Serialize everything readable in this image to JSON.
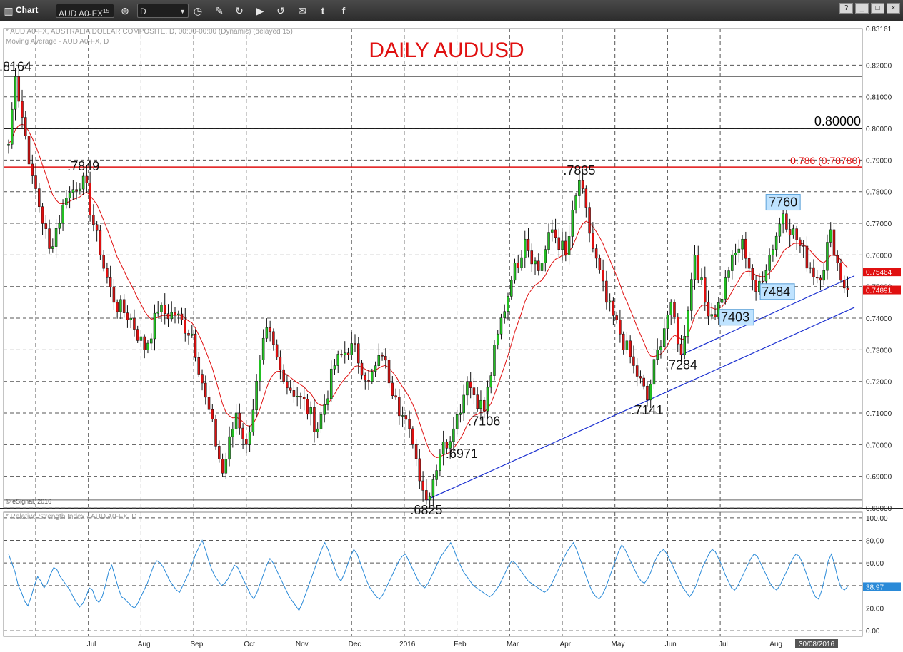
{
  "toolbar": {
    "chart_label": "Chart",
    "symbol": "AUD A0-FX",
    "symbol_sup": "15",
    "interval": "D",
    "window_buttons": [
      "?",
      "_",
      "□",
      "×"
    ]
  },
  "chart_data": [
    {
      "type": "candlestick",
      "title": "DAILY AUDUSD",
      "subtitle_lines": [
        "* AUD A0-FX, AUSTRALIA DOLLAR COMPOSITE, D, 00:00-00:00 (Dynamic) (delayed 15)",
        "Moving Average - AUD A0-FX, D"
      ],
      "watermark": "© eSignal, 2016",
      "y_ticks": [
        "0.82000",
        "0.81000",
        "0.80000",
        "0.79000",
        "0.78000",
        "0.77000",
        "0.76000",
        "0.75000",
        "0.74000",
        "0.73000",
        "0.72000",
        "0.71000",
        "0.70000",
        "0.69000",
        "0.68000"
      ],
      "ylim": [
        0.68,
        0.8316
      ],
      "price_tags": {
        "top": "0.83161",
        "ma": "0.75464",
        "last": "0.74891"
      },
      "x_labels": [
        "Jul",
        "Aug",
        "Sep",
        "Oct",
        "Nov",
        "Dec",
        "2016",
        "Feb",
        "Mar",
        "Apr",
        "May",
        "Jun",
        "Jul",
        "Aug"
      ],
      "date_tag": "30/08/2016",
      "waypoints": [
        {
          "i": 0,
          "v": 0.795
        },
        {
          "i": 2,
          "v": 0.8164
        },
        {
          "i": 7,
          "v": 0.785
        },
        {
          "i": 12,
          "v": 0.762
        },
        {
          "i": 17,
          "v": 0.778
        },
        {
          "i": 22,
          "v": 0.7849
        },
        {
          "i": 27,
          "v": 0.76
        },
        {
          "i": 31,
          "v": 0.745
        },
        {
          "i": 36,
          "v": 0.74
        },
        {
          "i": 40,
          "v": 0.73
        },
        {
          "i": 44,
          "v": 0.742
        },
        {
          "i": 49,
          "v": 0.741
        },
        {
          "i": 54,
          "v": 0.735
        },
        {
          "i": 58,
          "v": 0.715
        },
        {
          "i": 63,
          "v": 0.691
        },
        {
          "i": 67,
          "v": 0.71
        },
        {
          "i": 70,
          "v": 0.7
        },
        {
          "i": 76,
          "v": 0.737
        },
        {
          "i": 81,
          "v": 0.72
        },
        {
          "i": 86,
          "v": 0.715
        },
        {
          "i": 91,
          "v": 0.705
        },
        {
          "i": 96,
          "v": 0.725
        },
        {
          "i": 101,
          "v": 0.732
        },
        {
          "i": 106,
          "v": 0.72
        },
        {
          "i": 110,
          "v": 0.728
        },
        {
          "i": 114,
          "v": 0.715
        },
        {
          "i": 119,
          "v": 0.7
        },
        {
          "i": 123,
          "v": 0.6825
        },
        {
          "i": 127,
          "v": 0.6971
        },
        {
          "i": 131,
          "v": 0.705
        },
        {
          "i": 135,
          "v": 0.72
        },
        {
          "i": 140,
          "v": 0.7106
        },
        {
          "i": 144,
          "v": 0.735
        },
        {
          "i": 148,
          "v": 0.752
        },
        {
          "i": 152,
          "v": 0.765
        },
        {
          "i": 156,
          "v": 0.755
        },
        {
          "i": 160,
          "v": 0.768
        },
        {
          "i": 164,
          "v": 0.76
        },
        {
          "i": 168,
          "v": 0.7835
        },
        {
          "i": 172,
          "v": 0.762
        },
        {
          "i": 176,
          "v": 0.745
        },
        {
          "i": 180,
          "v": 0.735
        },
        {
          "i": 184,
          "v": 0.725
        },
        {
          "i": 188,
          "v": 0.7141
        },
        {
          "i": 191,
          "v": 0.73
        },
        {
          "i": 195,
          "v": 0.745
        },
        {
          "i": 198,
          "v": 0.7284
        },
        {
          "i": 202,
          "v": 0.76
        },
        {
          "i": 205,
          "v": 0.745
        },
        {
          "i": 208,
          "v": 0.7403
        },
        {
          "i": 212,
          "v": 0.755
        },
        {
          "i": 216,
          "v": 0.765
        },
        {
          "i": 220,
          "v": 0.7484
        },
        {
          "i": 224,
          "v": 0.76
        },
        {
          "i": 228,
          "v": 0.773
        },
        {
          "i": 232,
          "v": 0.7648
        },
        {
          "i": 236,
          "v": 0.756
        },
        {
          "i": 239,
          "v": 0.752
        },
        {
          "i": 242,
          "v": 0.768
        },
        {
          "i": 245,
          "v": 0.752
        },
        {
          "i": 247,
          "v": 0.7489
        }
      ],
      "horizontal_lines": [
        {
          "label": "0.80000",
          "value": 0.8,
          "color": "#000000"
        },
        {
          "label": "0.786 (0.78780)",
          "value": 0.7878,
          "color": "#e01010"
        },
        {
          "label": "",
          "value": 0.8164,
          "color": "#666666"
        },
        {
          "label": "",
          "value": 0.6825,
          "color": "#666666"
        }
      ],
      "trendlines": [
        {
          "from": {
            "i": 123,
            "v": 0.6825
          },
          "to": {
            "i": 249,
            "v": 0.7434
          },
          "color": "#1a2fd0"
        },
        {
          "from": {
            "i": 198,
            "v": 0.7284
          },
          "to": {
            "i": 249,
            "v": 0.7534
          },
          "color": "#1a2fd0"
        }
      ],
      "annotations": [
        {
          "text": ".8164",
          "i": 2,
          "v": 0.8164,
          "pos": "above",
          "boxed": false
        },
        {
          "text": ".7849",
          "i": 22,
          "v": 0.7849,
          "pos": "above",
          "boxed": false
        },
        {
          "text": ".6825",
          "i": 123,
          "v": 0.6825,
          "pos": "below",
          "boxed": false
        },
        {
          "text": ".6971",
          "i": 127,
          "v": 0.6971,
          "pos": "right",
          "boxed": false
        },
        {
          "text": ".7106",
          "i": 140,
          "v": 0.7106,
          "pos": "below",
          "boxed": false
        },
        {
          "text": ".7835",
          "i": 168,
          "v": 0.7835,
          "pos": "above",
          "boxed": false
        },
        {
          "text": ".7141",
          "i": 188,
          "v": 0.7141,
          "pos": "below",
          "boxed": false
        },
        {
          "text": ".7284",
          "i": 198,
          "v": 0.7284,
          "pos": "below",
          "boxed": false
        },
        {
          "text": "7403",
          "i": 208,
          "v": 0.7403,
          "pos": "right",
          "boxed": true
        },
        {
          "text": "7484",
          "i": 220,
          "v": 0.7484,
          "pos": "right",
          "boxed": true
        },
        {
          "text": "7760",
          "i": 228,
          "v": 0.7735,
          "pos": "above",
          "boxed": true
        }
      ]
    },
    {
      "type": "line",
      "title": "* Relative Strength Index - AUD A0-FX, D",
      "y_ticks": [
        "100.00",
        "80.00",
        "60.00",
        "40.00",
        "20.00",
        "0.00"
      ],
      "ylim": [
        -5,
        105
      ],
      "last_value": "38.97",
      "series": [
        {
          "values": [
            68,
            60,
            52,
            40,
            34,
            26,
            22,
            30,
            40,
            48,
            44,
            38,
            42,
            50,
            56,
            54,
            48,
            44,
            40,
            36,
            30,
            25,
            21,
            24,
            30,
            38,
            36,
            28,
            25,
            30,
            40,
            52,
            58,
            48,
            38,
            30,
            28,
            25,
            22,
            20,
            24,
            30,
            36,
            42,
            50,
            58,
            62,
            60,
            56,
            50,
            44,
            40,
            36,
            34,
            40,
            46,
            52,
            60,
            68,
            74,
            80,
            72,
            62,
            54,
            48,
            44,
            40,
            42,
            46,
            52,
            58,
            56,
            50,
            44,
            38,
            32,
            28,
            34,
            42,
            50,
            58,
            64,
            60,
            54,
            48,
            42,
            36,
            30,
            26,
            22,
            18,
            24,
            32,
            40,
            48,
            56,
            64,
            72,
            78,
            72,
            64,
            56,
            48,
            44,
            50,
            58,
            66,
            72,
            68,
            60,
            52,
            44,
            38,
            34,
            30,
            28,
            32,
            38,
            44,
            50,
            56,
            62,
            66,
            68,
            62,
            56,
            50,
            44,
            40,
            38,
            42,
            48,
            54,
            60,
            66,
            70,
            74,
            78,
            72,
            64,
            58,
            52,
            48,
            44,
            40,
            38,
            36,
            34,
            32,
            30,
            32,
            36,
            40,
            46,
            52,
            58,
            62,
            60,
            56,
            52,
            48,
            44,
            42,
            40,
            38,
            36,
            34,
            36,
            40,
            46,
            52,
            58,
            64,
            70,
            74,
            78,
            72,
            64,
            56,
            48,
            40,
            34,
            30,
            28,
            32,
            38,
            46,
            54,
            62,
            70,
            76,
            72,
            66,
            60,
            54,
            48,
            44,
            42,
            46,
            52,
            60,
            66,
            70,
            72,
            68,
            62,
            56,
            50,
            44,
            38,
            34,
            30,
            34,
            40,
            48,
            56,
            62,
            68,
            72,
            70,
            64,
            58,
            50,
            44,
            38,
            36,
            40,
            46,
            52,
            58,
            64,
            68,
            66,
            60,
            54,
            48,
            42,
            38,
            36,
            40,
            46,
            52,
            58,
            64,
            68,
            66,
            60,
            52,
            44,
            36,
            30,
            28,
            36,
            48,
            62,
            68,
            58,
            46,
            38,
            36,
            39
          ]
        }
      ]
    }
  ]
}
